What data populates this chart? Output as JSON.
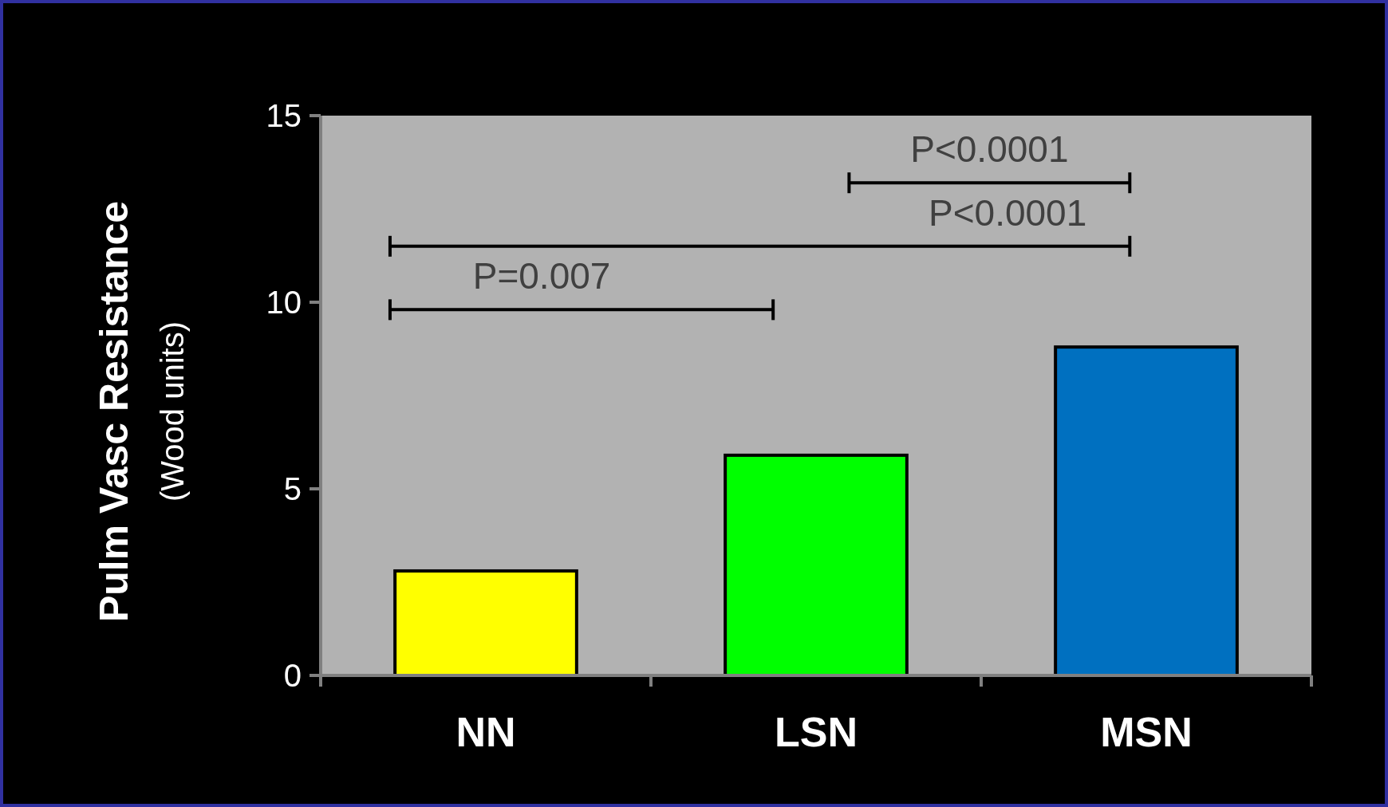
{
  "chart_data": {
    "type": "bar",
    "ylabel": "Pulm Vasc Resistance\n(Wood units)",
    "categories": [
      "NN",
      "LSN",
      "MSN"
    ],
    "values": [
      2.8,
      5.9,
      8.8
    ],
    "colors": [
      "#ffff00",
      "#00ff00",
      "#0070c0"
    ],
    "ylim": [
      0,
      15
    ],
    "yticks": [
      0,
      5,
      10,
      15
    ],
    "grid": false,
    "annotations": [
      "P<0.0001",
      "P<0.0001",
      "P=0.007"
    ]
  }
}
